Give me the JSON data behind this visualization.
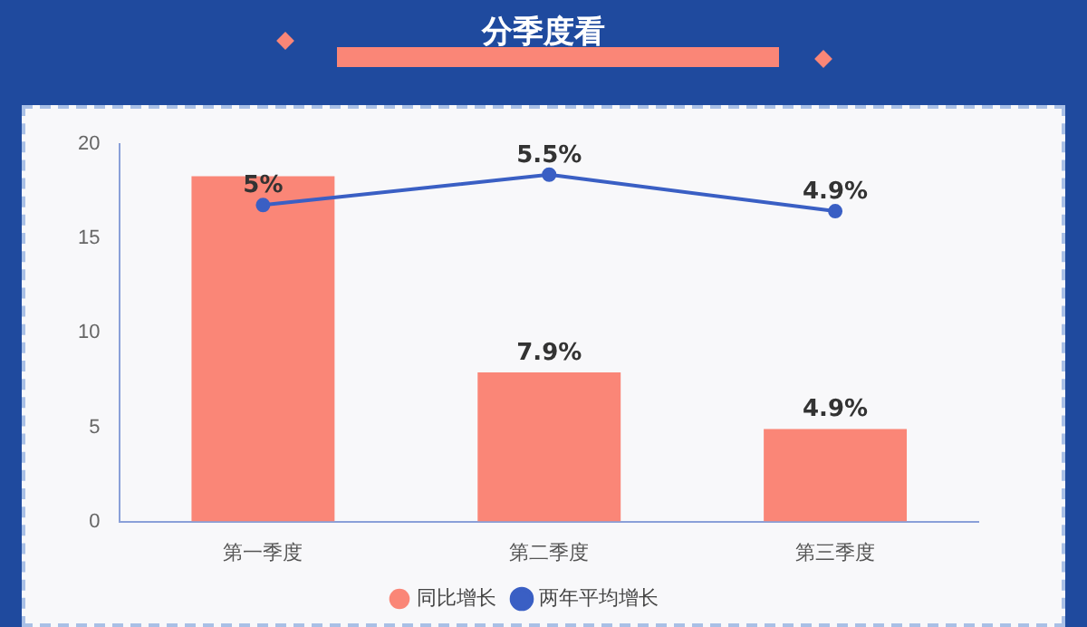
{
  "chart_data": {
    "type": "bar",
    "title": "分季度看",
    "categories": [
      "第一季度",
      "第二季度",
      "第三季度"
    ],
    "series": [
      {
        "name": "同比增长",
        "color": "#fa8677",
        "values": [
          18.3,
          7.9,
          4.9
        ],
        "value_labels": [
          null,
          "7.9%",
          "4.9%"
        ]
      },
      {
        "name": "两年平均增长",
        "type": "line",
        "axis": "y2",
        "color": "#3a5fc4",
        "values": [
          5,
          5.5,
          4.9
        ],
        "value_labels": [
          "5%",
          "5.5%",
          "4.9%"
        ]
      }
    ],
    "ylim": [
      0,
      20
    ],
    "yticks": [
      0,
      5,
      10,
      15,
      20
    ],
    "y2lim": [
      -0.2,
      6
    ],
    "tick_labels": "xy",
    "grid": false,
    "legend": "bottom",
    "marker": "circle",
    "line_style": "solid"
  }
}
